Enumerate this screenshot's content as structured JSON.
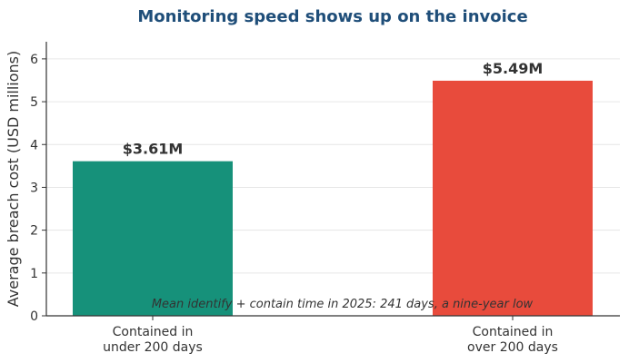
{
  "chart_data": {
    "type": "bar",
    "title": "Monitoring speed shows up on the invoice",
    "ylabel": "Average breach cost (USD millions)",
    "xlabel": "",
    "categories": [
      [
        "Contained in",
        "under 200 days"
      ],
      [
        "Contained in",
        "over 200 days"
      ]
    ],
    "values": [
      3.61,
      5.49
    ],
    "data_labels": [
      "$3.61M",
      "$5.49M"
    ],
    "bar_colors": [
      "#16917a",
      "#e84b3c"
    ],
    "title_color": "#1f4e79",
    "ylim": [
      0,
      6.4
    ],
    "yticks": [
      0,
      1,
      2,
      3,
      4,
      5,
      6
    ],
    "grid": true,
    "annotation": "Mean identify + contain time in 2025: 241 days, a nine-year low"
  }
}
